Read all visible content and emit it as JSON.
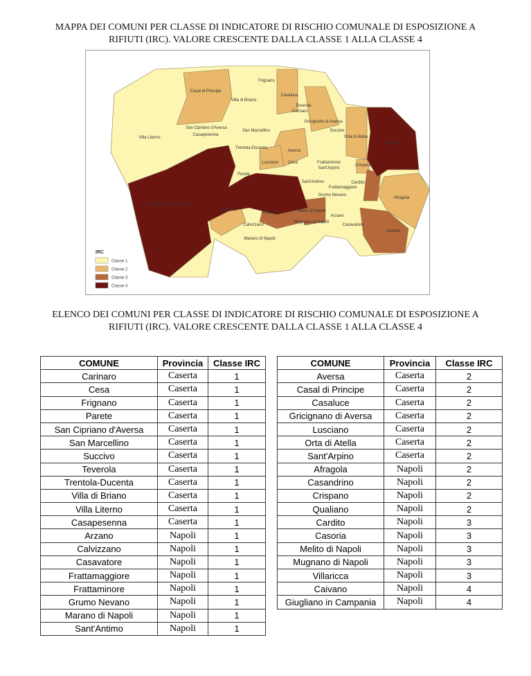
{
  "map_title": "MAPPA DEI COMUNI PER CLASSE DI INDICATORE DI RISCHIO COMUNALE DI ESPOSIZIONE A RIFIUTI (IRC). VALORE CRESCENTE DALLA CLASSE 1 ALLA CLASSE 4",
  "map": {
    "labels": [
      "Casal di Principe",
      "Frignano",
      "Casaluce",
      "Villa di Briano",
      "Teverola",
      "Carinaro",
      "Gricignano di Aversa",
      "Succivo",
      "Orta di Atella",
      "San Cipriano d'Aversa",
      "San Marcellino",
      "Casapesenna",
      "Villa Literno",
      "Trentola-Ducenta",
      "Aversa",
      "Caivano",
      "Lusciano",
      "Cesa",
      "Frattaminore",
      "Sant'Arpino",
      "Crispano",
      "Parete",
      "Cardito",
      "Sant'Antimo",
      "Frattamaggiore",
      "Afragola",
      "Giugliano in Campania",
      "Qualiano",
      "Grumo Nevano",
      "Villaricca",
      "Melito di Napoli",
      "Mugnano di Napoli",
      "Arzano",
      "Casavatore",
      "Calvizzano",
      "Casoria",
      "Marano di Napoli"
    ],
    "legend": {
      "title": "IRC",
      "items": [
        "Classe 1",
        "Classe 2",
        "Classe 3",
        "Classe 4"
      ]
    }
  },
  "list_title": "ELENCO DEI COMUNI PER CLASSE DI INDICATORE DI RISCHIO COMUNALE DI ESPOSIZIONE A RIFIUTI (IRC). VALORE CRESCENTE DALLA CLASSE 1 ALLA CLASSE 4",
  "tables": [
    {
      "header": [
        "COMUNE",
        "Provincia",
        "Classe IRC"
      ],
      "rows": [
        [
          "Carinaro",
          "Caserta",
          1
        ],
        [
          "Cesa",
          "Caserta",
          1
        ],
        [
          "Frignano",
          "Caserta",
          1
        ],
        [
          "Parete",
          "Caserta",
          1
        ],
        [
          "San Cipriano d'Aversa",
          "Caserta",
          1
        ],
        [
          "San Marcellino",
          "Caserta",
          1
        ],
        [
          "Succivo",
          "Caserta",
          1
        ],
        [
          "Teverola",
          "Caserta",
          1
        ],
        [
          "Trentola-Ducenta",
          "Caserta",
          1
        ],
        [
          "Villa di Briano",
          "Caserta",
          1
        ],
        [
          "Villa Literno",
          "Caserta",
          1
        ],
        [
          "Casapesenna",
          "Caserta",
          1
        ],
        [
          "Arzano",
          "Napoli",
          1
        ],
        [
          "Calvizzano",
          "Napoli",
          1
        ],
        [
          "Casavatore",
          "Napoli",
          1
        ],
        [
          "Frattamaggiore",
          "Napoli",
          1
        ],
        [
          "Frattaminore",
          "Napoli",
          1
        ],
        [
          "Grumo Nevano",
          "Napoli",
          1
        ],
        [
          "Marano di Napoli",
          "Napoli",
          1
        ],
        [
          "Sant'Antimo",
          "Napoli",
          1
        ]
      ]
    },
    {
      "header": [
        "COMUNE",
        "Provincia",
        "Classe IRC"
      ],
      "rows": [
        [
          "Aversa",
          "Caserta",
          2
        ],
        [
          "Casal di Principe",
          "Caserta",
          2
        ],
        [
          "Casaluce",
          "Caserta",
          2
        ],
        [
          "Gricignano di Aversa",
          "Caserta",
          2
        ],
        [
          "Lusciano",
          "Caserta",
          2
        ],
        [
          "Orta di Atella",
          "Caserta",
          2
        ],
        [
          "Sant'Arpino",
          "Caserta",
          2
        ],
        [
          "Afragola",
          "Napoli",
          2
        ],
        [
          "Casandrino",
          "Napoli",
          2
        ],
        [
          "Crispano",
          "Napoli",
          2
        ],
        [
          "Qualiano",
          "Napoli",
          2
        ],
        [
          "Cardito",
          "Napoli",
          3
        ],
        [
          "Casoria",
          "Napoli",
          3
        ],
        [
          "Melito di Napoli",
          "Napoli",
          3
        ],
        [
          "Mugnano di Napoli",
          "Napoli",
          3
        ],
        [
          "Villaricca",
          "Napoli",
          3
        ],
        [
          "Caivano",
          "Napoli",
          4
        ],
        [
          "Giugliano in Campania",
          "Napoli",
          4
        ]
      ]
    }
  ]
}
